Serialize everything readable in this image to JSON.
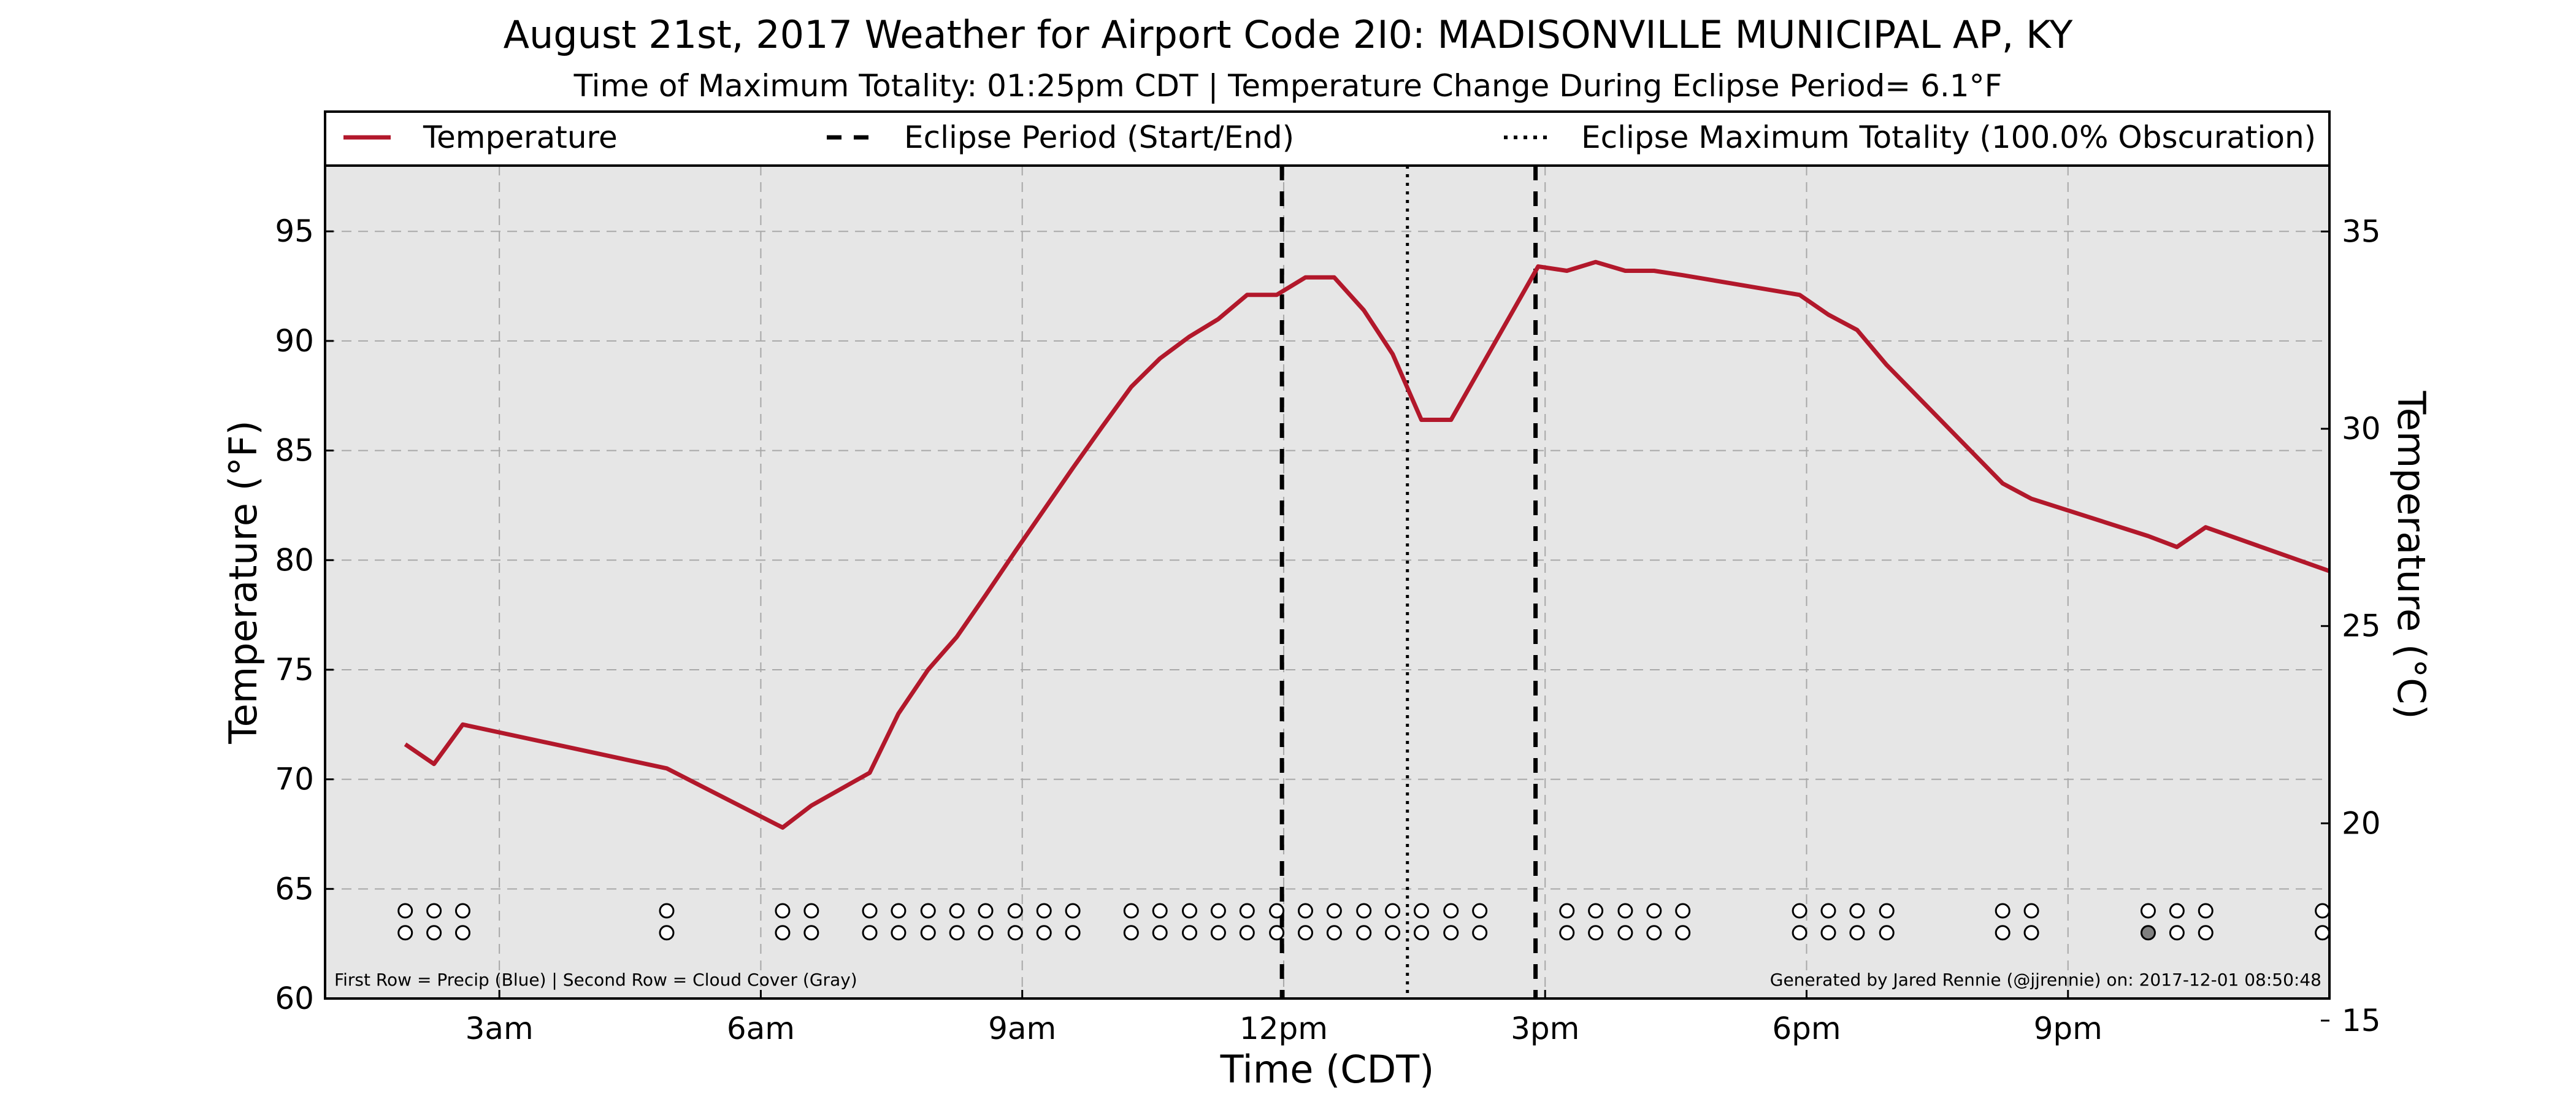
{
  "chart_data": {
    "type": "line",
    "title": "August 21st, 2017 Weather for Airport Code 2I0: MADISONVILLE MUNICIPAL AP, KY",
    "subtitle": "Time of Maximum Totality: 01:25pm CDT | Temperature Change During Eclipse Period= 6.1°F",
    "xlabel": "Time (CDT)",
    "ylabel": "Temperature (°F)",
    "ylabel_right": "Temperature (°C)",
    "xlim": [
      1.0,
      24.0
    ],
    "ylim": [
      60,
      98
    ],
    "ylim_right": [
      15.56,
      36.67
    ],
    "x_ticks": [
      {
        "x": 3,
        "label": "3am"
      },
      {
        "x": 6,
        "label": "6am"
      },
      {
        "x": 9,
        "label": "9am"
      },
      {
        "x": 12,
        "label": "12pm"
      },
      {
        "x": 15,
        "label": "3pm"
      },
      {
        "x": 18,
        "label": "6pm"
      },
      {
        "x": 21,
        "label": "9pm"
      }
    ],
    "y_ticks": [
      60,
      65,
      70,
      75,
      80,
      85,
      90,
      95
    ],
    "y_ticks_right": [
      15,
      20,
      25,
      30,
      35
    ],
    "grid": true,
    "legend_position": "top",
    "legend": [
      {
        "label": "Temperature",
        "style": "solid"
      },
      {
        "label": "Eclipse Period (Start/End)",
        "style": "dashed"
      },
      {
        "label": "Eclipse Maximum Totality (100.0% Obscuration)",
        "style": "dotted"
      }
    ],
    "series": [
      {
        "name": "Temperature",
        "color": "#b2182b",
        "x": [
          1.92,
          2.25,
          2.58,
          4.92,
          6.25,
          6.58,
          7.25,
          7.58,
          7.92,
          8.25,
          8.58,
          8.92,
          9.25,
          9.58,
          9.92,
          10.25,
          10.58,
          10.92,
          11.25,
          11.58,
          11.92,
          12.25,
          12.58,
          12.92,
          13.25,
          13.58,
          13.92,
          14.92,
          15.25,
          15.58,
          15.92,
          16.25,
          16.58,
          17.92,
          18.25,
          18.58,
          18.92,
          20.25,
          20.58,
          21.92,
          22.25,
          22.58,
          24.0
        ],
        "y": [
          71.6,
          70.7,
          72.5,
          70.5,
          67.8,
          68.8,
          70.3,
          73.0,
          75.0,
          76.5,
          78.4,
          80.4,
          82.3,
          84.2,
          86.1,
          87.9,
          89.2,
          90.2,
          91.0,
          92.1,
          92.1,
          92.9,
          92.9,
          91.4,
          89.4,
          86.4,
          86.4,
          93.4,
          93.2,
          93.6,
          93.2,
          93.2,
          93.0,
          92.1,
          91.2,
          90.5,
          88.9,
          83.5,
          82.8,
          81.1,
          80.6,
          81.5,
          79.5
        ]
      }
    ],
    "eclipse_start": 11.98,
    "eclipse_end": 14.89,
    "eclipse_max": 13.42,
    "observation_rows": {
      "precip_y": 64.0,
      "cloud_y": 63.0,
      "precip_x": [
        1.92,
        2.25,
        2.58,
        4.92,
        6.25,
        6.58,
        7.25,
        7.58,
        7.92,
        8.25,
        8.58,
        8.92,
        9.25,
        9.58,
        10.25,
        10.58,
        10.92,
        11.25,
        11.58,
        11.92,
        12.25,
        12.58,
        12.92,
        13.25,
        13.58,
        13.92,
        14.25,
        15.25,
        15.58,
        15.92,
        16.25,
        16.58,
        17.92,
        18.25,
        18.58,
        18.92,
        20.25,
        20.58,
        21.92,
        22.25,
        22.58,
        23.92
      ],
      "cloud_x": [
        1.92,
        2.25,
        2.58,
        4.92,
        6.25,
        6.58,
        7.25,
        7.58,
        7.92,
        8.25,
        8.58,
        8.92,
        9.25,
        9.58,
        10.25,
        10.58,
        10.92,
        11.25,
        11.58,
        11.92,
        12.25,
        12.58,
        12.92,
        13.25,
        13.58,
        13.92,
        14.25,
        15.25,
        15.58,
        15.92,
        16.25,
        16.58,
        17.92,
        18.25,
        18.58,
        18.92,
        20.25,
        20.58,
        21.92,
        22.25,
        22.58,
        23.92
      ],
      "cloud_filled_x": [
        21.92
      ],
      "cloud_fill_color": "#808080"
    },
    "footnote_left": "First Row = Precip (Blue) | Second Row = Cloud Cover (Gray)",
    "footnote_right": "Generated by Jared Rennie (@jjrennie) on: 2017-12-01 08:50:48"
  }
}
